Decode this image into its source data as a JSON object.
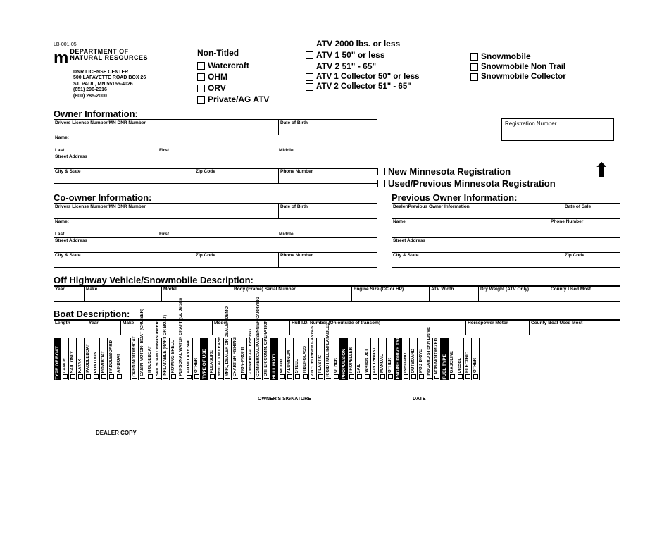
{
  "form_id": "LB-001-05",
  "dept_line1": "DEPARTMENT OF",
  "dept_line2": "NATURAL RESOURCES",
  "addr": {
    "l1": "DNR LICENSE CENTER",
    "l2": "500 LAFAYETTE ROAD BOX 26",
    "l3": "ST. PAUL, MN 55155-4026",
    "l4": "(651) 296-2316",
    "l5": "(800) 285-2000"
  },
  "vehicle_types": {
    "col1_title": "Non-Titled",
    "col1": [
      "Watercraft",
      "OHM",
      "ORV",
      "Private/AG ATV"
    ],
    "col2": [
      "ATV 2000 lbs. or less",
      "ATV 1  50\" or less",
      "ATV 2  51\" - 65\"",
      "ATV 1  Collector  50\" or less",
      "ATV 2  Collector  51\" - 65\""
    ],
    "col3": [
      "Snowmobile",
      "Snowmobile  Non Trail",
      "Snowmobile  Collector"
    ]
  },
  "sections": {
    "owner": "Owner Information:",
    "coowner": "Co-owner Information:",
    "prev_owner": "Previous Owner Information:",
    "ohv": "Off Highway Vehicle/Snowmobile Description:",
    "boat": "Boat Description:"
  },
  "reg_box_label": "Registration Number",
  "reg_types": {
    "new": "New Minnesota Registration",
    "used": "Used/Previous Minnesota Registration"
  },
  "owner_fields": {
    "dl": "Drivers License Number/MN DNR Number",
    "dob": "Date of Birth",
    "name": "Name:",
    "last": "Last",
    "first": "First",
    "middle": "Middle",
    "street": "Street Address",
    "city": "City & State",
    "zip": "Zip Code",
    "phone": "Phone Number"
  },
  "prev_fields": {
    "dealer": "Dealer/Previous Owner Information",
    "dos": "Date of Sale",
    "name": "Name",
    "phone": "Phone Number",
    "street": "Street Address",
    "city": "City & State",
    "zip": "Zip Code"
  },
  "ohv_fields": [
    "Year",
    "Make",
    "Model",
    "Body (Frame) Serial Number",
    "Engine Size (CC or HP)",
    "ATV Width",
    "Dry Weight (ATV Only)",
    "County Used Most"
  ],
  "boat_fields": [
    "Length",
    "Year",
    "Make",
    "Model",
    "Hull I.D. Number (On outside of transom)",
    "Horsepower Motor",
    "County Boat Used Most"
  ],
  "vbars": [
    {
      "h": true,
      "t": "TYPE OF BOAT"
    },
    {
      "t": "CANOE"
    },
    {
      "t": "SAIL ONLY"
    },
    {
      "t": "KAYAK"
    },
    {
      "t": "PADDLEBOAT"
    },
    {
      "t": "PONTOON"
    },
    {
      "t": "ROWBOAT"
    },
    {
      "t": "PADDLEBOARD"
    },
    {
      "t": "AIRBOAT"
    },
    {
      "t": ""
    },
    {
      "t": "OPEN MOTORBOAT"
    },
    {
      "t": "CABIN MOTOR- BOAT (CRUISER)"
    },
    {
      "t": "HOUSEBOAT"
    },
    {
      "t": "SAILBOARD WINDSURFER"
    },
    {
      "t": "INFLATABLE (RAFT OR BOAT)"
    },
    {
      "t": "ROWING SHELL"
    },
    {
      "t": "PERSONAL WATER CRAFT (i.e. Jetski)"
    },
    {
      "t": "AUXILLARY SAIL"
    },
    {
      "t": "OTHER"
    },
    {
      "h": true,
      "t": "TYPE OF USE"
    },
    {
      "t": "PLEASURE"
    },
    {
      "t": "RENTAL OR LEASE"
    },
    {
      "t": "MFR., DEALER OR DEALER DEMO"
    },
    {
      "t": "CHARTER FISHING"
    },
    {
      "t": "NON-PROFIT"
    },
    {
      "t": "COMMERCIAL FISHING"
    },
    {
      "t": "COMMERCIAL PASSENGER CARRYING"
    },
    {
      "t": "OTHER COMM. OPERATION"
    },
    {
      "h": true,
      "t": "HULL MAT'L"
    },
    {
      "t": "WOOD"
    },
    {
      "t": "ALUMINUM"
    },
    {
      "t": "STEEL"
    },
    {
      "t": "FIBERGLASS"
    },
    {
      "t": "VINYL/RUBBER CANVAS"
    },
    {
      "t": "PLASTIC"
    },
    {
      "t": "RIGID HULL INFLATABLES"
    },
    {
      "t": "OTHER"
    },
    {
      "h": true,
      "t": "PROPULSION"
    },
    {
      "t": "PROPELLER"
    },
    {
      "t": "SAIL"
    },
    {
      "t": "WATER JET"
    },
    {
      "t": "AIR THRUST"
    },
    {
      "t": "MANUAL"
    },
    {
      "t": "OTHER"
    },
    {
      "h": true,
      "t": "ENGINE DRIVE TYPE"
    },
    {
      "t": "INBOARD"
    },
    {
      "t": "OUTBOARD"
    },
    {
      "t": "POD DRIVE"
    },
    {
      "t": "INBOARD STERN DRIVE"
    },
    {
      "t": "NON-MOTORIZED"
    },
    {
      "h": true,
      "t": "FUEL TYPE"
    },
    {
      "t": "GASOLINE"
    },
    {
      "t": "DIESEL"
    },
    {
      "t": "ELECTRIC"
    },
    {
      "t": "OTHER"
    }
  ],
  "sig": {
    "owner": "OWNER'S SIGNATURE",
    "date": "DATE"
  },
  "dealer_copy": "DEALER COPY"
}
